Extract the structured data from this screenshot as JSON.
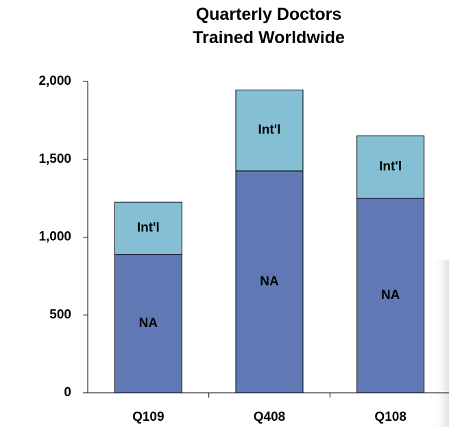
{
  "chart_data": {
    "type": "stacked-bar",
    "title": "Quarterly Doctors Trained Worldwide",
    "categories": [
      "Q109",
      "Q408",
      "Q108"
    ],
    "series": [
      {
        "name": "NA",
        "color": "#6079b4",
        "values": [
          890,
          1425,
          1250
        ]
      },
      {
        "name": "Int'l",
        "color": "#85bfd4",
        "values": [
          335,
          520,
          400
        ]
      }
    ],
    "ylim": [
      0,
      2000
    ],
    "yticks": [
      0,
      500,
      {
        "value": 1000,
        "label": "1,000"
      },
      {
        "value": 1500,
        "label": "1,500"
      },
      {
        "value": 2000,
        "label": "2,000"
      }
    ]
  }
}
